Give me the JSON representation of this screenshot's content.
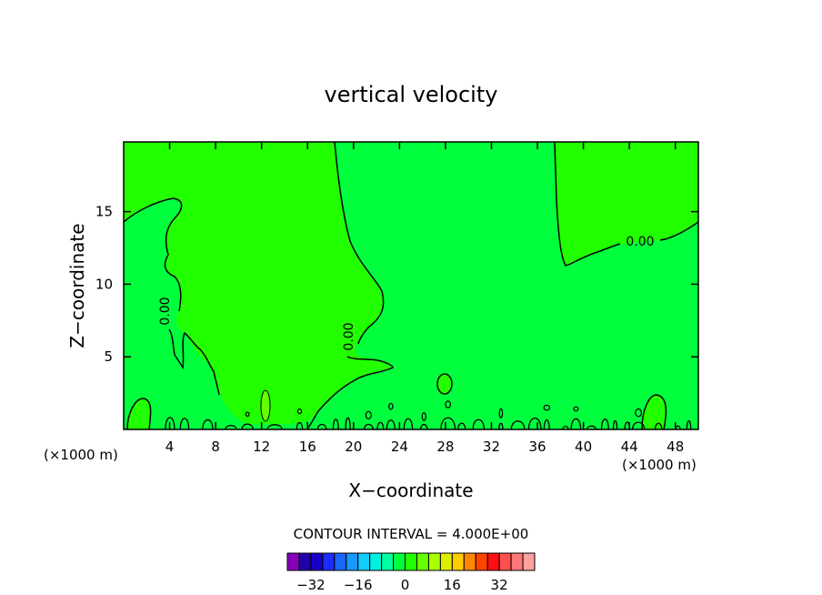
{
  "chart_data": {
    "type": "contour",
    "title": "vertical velocity",
    "xlabel": "X−coordinate",
    "ylabel": "Z−coordinate",
    "x_unit_label_left": "(×1000 m)",
    "x_unit_label_right": "(×1000 m)",
    "xlim": [
      0,
      50
    ],
    "ylim": [
      0,
      19.8
    ],
    "x_ticks": [
      4,
      8,
      12,
      16,
      20,
      24,
      28,
      32,
      36,
      40,
      44,
      48
    ],
    "y_ticks": [
      5,
      10,
      15
    ],
    "contour_interval_text": "CONTOUR INTERVAL = 4.000E+00",
    "contour_labels": [
      "0.00",
      "0.00",
      "0.00"
    ],
    "regions": [
      {
        "level": "positive (0 to 4)",
        "color": "#22ff00"
      },
      {
        "level": "negative (-4 to 0)",
        "color": "#00ff3c"
      }
    ],
    "colorbar": {
      "colors": [
        "#8800bb",
        "#2200aa",
        "#1800cc",
        "#1c2cff",
        "#1a66ff",
        "#1899ff",
        "#10ccff",
        "#00f0e0",
        "#00ffa0",
        "#00ff3c",
        "#22ff00",
        "#66ff00",
        "#aaff00",
        "#e0ef00",
        "#ffcc00",
        "#ff8800",
        "#ff4400",
        "#ff1010",
        "#ff5050",
        "#ff7878",
        "#ffa0a0"
      ],
      "tick_labels": [
        "−32",
        "−16",
        "0",
        "16",
        "32"
      ],
      "tick_values": [
        -32,
        -16,
        0,
        16,
        32
      ],
      "range": [
        -40,
        44
      ]
    }
  }
}
